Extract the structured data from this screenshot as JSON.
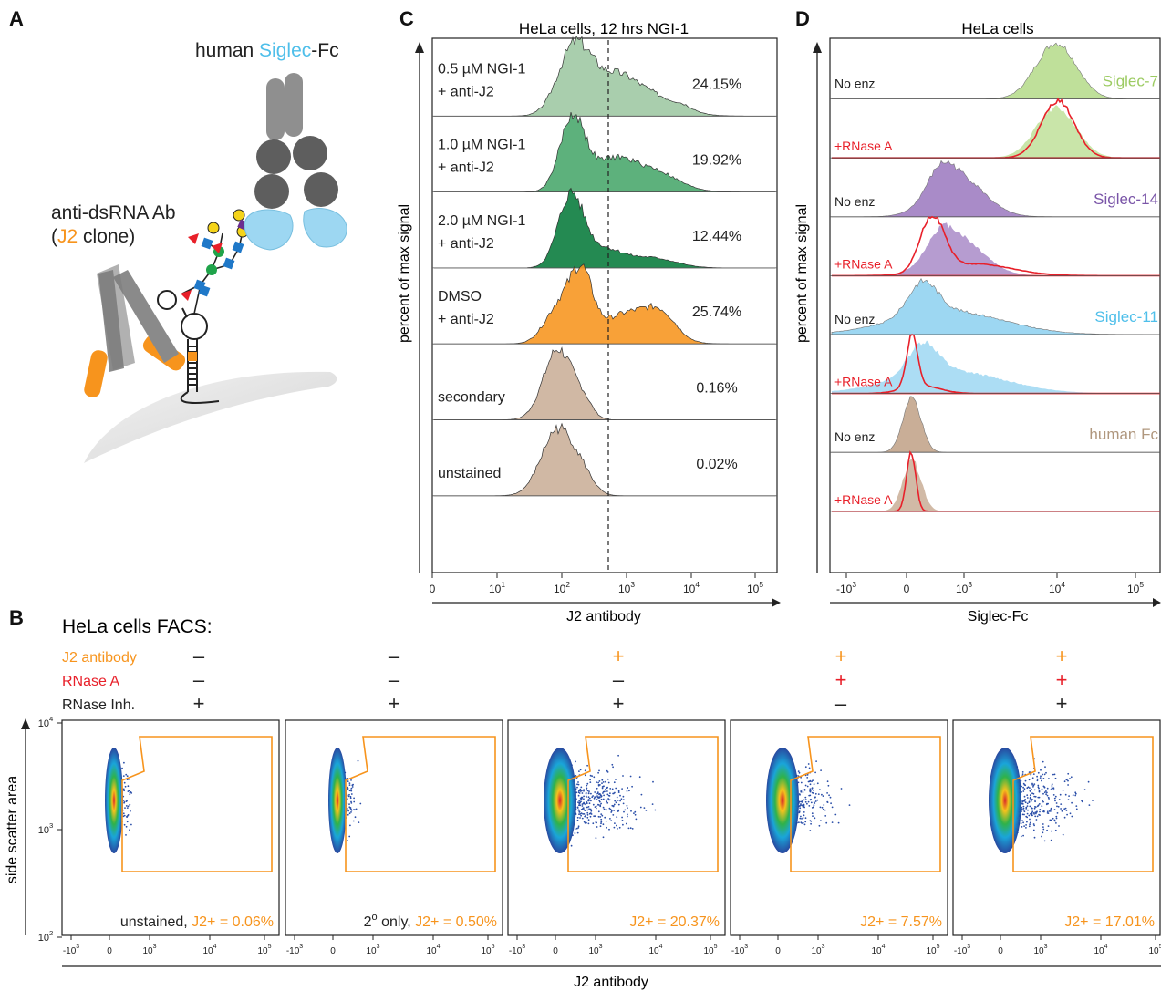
{
  "panel_letters": {
    "a": "A",
    "b": "B",
    "c": "C",
    "d": "D"
  },
  "colors": {
    "orange": "#F7941D",
    "red": "#E8202A",
    "light_blue": "#9DD7F2",
    "green_light": "#9DC7A2",
    "green_mid": "#47A66A",
    "green_dark": "#067A3A",
    "tan": "#C9AE97",
    "siglec7": "#BFE09A",
    "siglec14": "#A98BC8",
    "grey": "#8A8A8A",
    "grey_dark": "#5E5E5E",
    "glycan_blue": "#1F78C8",
    "glycan_green": "#1FA34A",
    "glycan_yellow": "#F5D41A",
    "glycan_purple": "#6B2D90"
  },
  "icons": [
    "antibody-icon",
    "siglec-fc-icon",
    "glycan-icon",
    "rna-hairpin-icon",
    "cell-membrane-icon"
  ],
  "panel_a": {
    "siglec_title": {
      "pre": "human ",
      "mid": "Siglec",
      "post": "-Fc"
    },
    "antibody_label_line1": "anti-dsRNA Ab",
    "antibody_label_line2": {
      "pre": "(",
      "mid": "J2",
      "post": " clone)"
    }
  },
  "chart_data": [
    {
      "type": "histogram-stack",
      "id": "panel-c",
      "title": "HeLa cells, 12 hrs NGI-1",
      "xlabel": "J2 antibody",
      "ylabel": "percent of max signal",
      "x_ticks": [
        {
          "m": "0",
          "e": ""
        },
        {
          "m": "10",
          "e": "1"
        },
        {
          "m": "10",
          "e": "2"
        },
        {
          "m": "10",
          "e": "3"
        },
        {
          "m": "10",
          "e": "4"
        },
        {
          "m": "10",
          "e": "5"
        }
      ],
      "gate_line": "dashed vertical",
      "rows": [
        {
          "line1": "0.5 µM NGI-1",
          "line2": "+ anti-J2",
          "percent": "24.15%",
          "color": "#9DC7A2"
        },
        {
          "line1": "1.0 µM NGI-1",
          "line2": "+ anti-J2",
          "percent": "19.92%",
          "color": "#47A66A"
        },
        {
          "line1": "2.0 µM NGI-1",
          "line2": "+ anti-J2",
          "percent": "12.44%",
          "color": "#067A3A"
        },
        {
          "line1": "DMSO",
          "line2": "+ anti-J2",
          "percent": "25.74%",
          "color": "#F7941D"
        },
        {
          "line1": "secondary",
          "line2": "",
          "percent": "0.16%",
          "color": "#C9AE97"
        },
        {
          "line1": "unstained",
          "line2": "",
          "percent": "0.02%",
          "color": "#C9AE97"
        }
      ]
    },
    {
      "type": "histogram-stack",
      "id": "panel-d",
      "title": "HeLa cells",
      "xlabel": "Siglec-Fc",
      "ylabel": "percent of max signal",
      "x_ticks": [
        {
          "m": "-10",
          "e": "3"
        },
        {
          "m": "0",
          "e": ""
        },
        {
          "m": "10",
          "e": "3"
        },
        {
          "m": "10",
          "e": "4"
        },
        {
          "m": "10",
          "e": "5"
        }
      ],
      "groups": [
        {
          "name": "Siglec-7",
          "color": "#BFE09A",
          "label_color": "#9CCB62"
        },
        {
          "name": "Siglec-14",
          "color": "#A98BC8",
          "label_color": "#7A55A8"
        },
        {
          "name": "Siglec-11",
          "color": "#9DD7F2",
          "label_color": "#4FBFEA"
        },
        {
          "name": "human Fc",
          "color": "#C9AE97",
          "label_color": "#B0977E"
        }
      ],
      "row_labels": [
        "No enz",
        "+RNase A"
      ]
    },
    {
      "type": "scatter",
      "id": "panel-b",
      "title": "HeLa cells FACS:",
      "xlabel": "J2 antibody",
      "ylabel": "side scatter area",
      "y_ticks": [
        {
          "m": "10",
          "e": "4"
        },
        {
          "m": "10",
          "e": "3"
        },
        {
          "m": "10",
          "e": "2"
        }
      ],
      "x_ticks": [
        {
          "m": "-10",
          "e": "3"
        },
        {
          "m": "0",
          "e": ""
        },
        {
          "m": "10",
          "e": "3"
        },
        {
          "m": "10",
          "e": "4"
        },
        {
          "m": "10",
          "e": "5"
        }
      ],
      "conditions": {
        "rows": [
          "J2 antibody",
          "RNase A",
          "RNase Inh."
        ],
        "cells": [
          [
            "–",
            "–",
            "+"
          ],
          [
            "–",
            "–",
            "+"
          ],
          [
            "+",
            "–",
            "+"
          ],
          [
            "+",
            "+",
            "–"
          ],
          [
            "+",
            "+",
            "+"
          ]
        ]
      },
      "plots": [
        {
          "prefix": "unstained, ",
          "sup": "",
          "label": "J2+ = 0.06%",
          "j2_fraction": 0.0006
        },
        {
          "prefix": "2",
          "sup": "o",
          "prefix2": " only, ",
          "label": "J2+ = 0.50%",
          "j2_fraction": 0.005
        },
        {
          "prefix": "",
          "sup": "",
          "label": "J2+ = 20.37%",
          "j2_fraction": 0.2037
        },
        {
          "prefix": "",
          "sup": "",
          "label": "J2+ = 7.57%",
          "j2_fraction": 0.0757
        },
        {
          "prefix": "",
          "sup": "",
          "label": "J2+ = 17.01%",
          "j2_fraction": 0.1701
        }
      ]
    }
  ]
}
